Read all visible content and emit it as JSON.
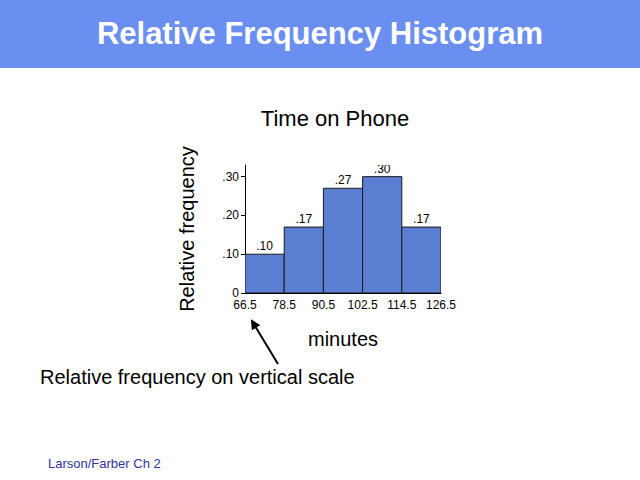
{
  "slide": {
    "header": "Relative Frequency Histogram",
    "annotation": "Relative frequency on vertical scale",
    "footer": "Larson/Farber Ch 2"
  },
  "chart_data": {
    "type": "histogram",
    "title": "Time on Phone",
    "x_label": "minutes",
    "y_label": "Relative frequency",
    "bins": [
      66.5,
      78.5,
      90.5,
      102.5,
      114.5,
      126.5
    ],
    "values": [
      0.1,
      0.17,
      0.27,
      0.3,
      0.17
    ],
    "value_labels": [
      ".10",
      ".17",
      ".27",
      ".30",
      ".17"
    ],
    "data_labels": true,
    "color": "#5a7fd2",
    "xlim": [
      66.5,
      126.5
    ],
    "xticks": [
      66.5,
      78.5,
      90.5,
      102.5,
      114.5,
      126.5
    ],
    "ylim": [
      0,
      0.33
    ],
    "yticks": [
      0,
      {
        "value": 0.1,
        "label": ".10"
      },
      {
        "value": 0.2,
        "label": ".20"
      },
      {
        "value": 0.3,
        "label": ".30"
      }
    ],
    "grid": false
  }
}
